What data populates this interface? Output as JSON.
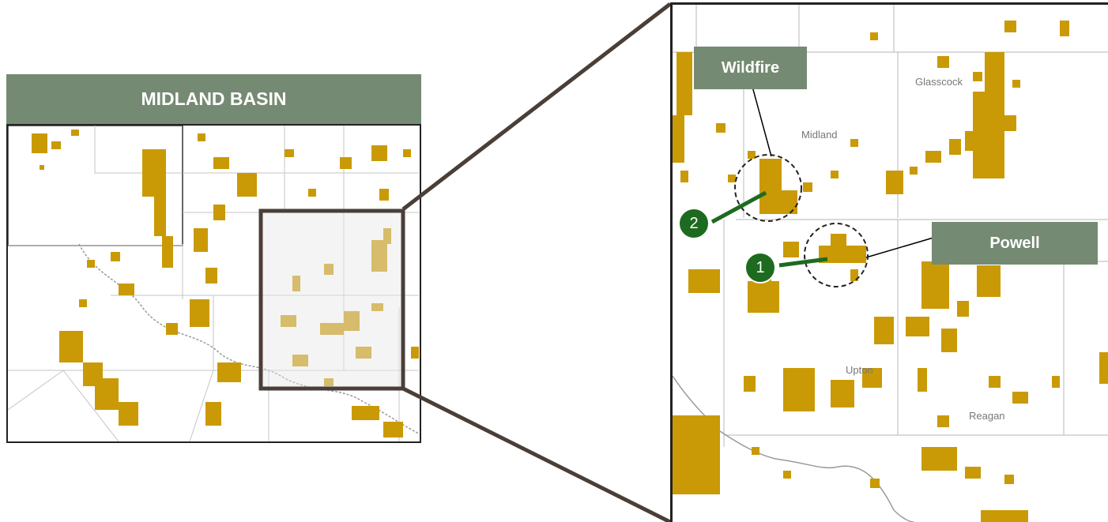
{
  "left_panel": {
    "title": "MIDLAND BASIN"
  },
  "right_panel": {
    "county_labels": {
      "glasscock": "Glasscock",
      "midland": "Midland",
      "upton": "Upton",
      "reagan": "Reagan"
    },
    "callouts": {
      "wildfire": {
        "label": "Wildfire",
        "number": "2"
      },
      "powell": {
        "label": "Powell",
        "number": "1"
      }
    }
  },
  "colors": {
    "acreage": "#c99a06",
    "header_bg": "#758a72",
    "badge": "#1d6b1f",
    "county_lines": "#bdbdbd",
    "frame": "#4a3f38"
  }
}
